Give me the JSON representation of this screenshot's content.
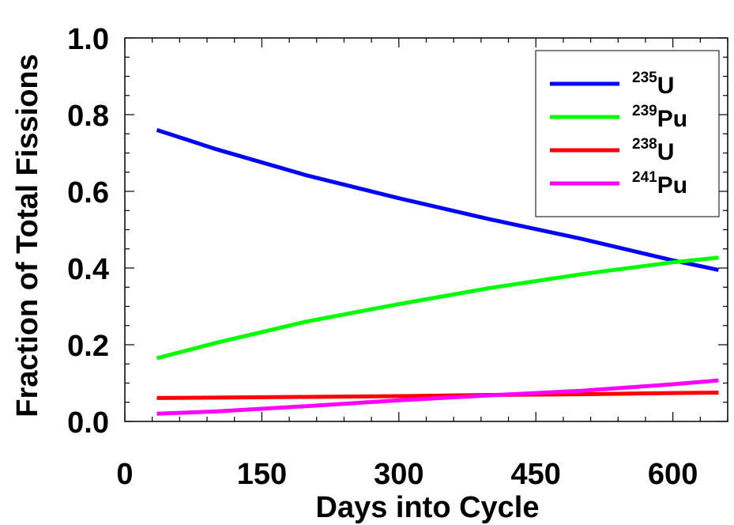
{
  "chart_data": {
    "type": "line",
    "xlabel": "Days into Cycle",
    "ylabel": "Fraction of Total Fissions",
    "xlim": [
      0,
      660
    ],
    "ylim": [
      0.0,
      1.0
    ],
    "x_ticks": [
      "0",
      "150",
      "300",
      "450",
      "600"
    ],
    "y_ticks": [
      "0.0",
      "0.2",
      "0.4",
      "0.6",
      "0.8",
      "1.0"
    ],
    "x_tick_values": [
      0,
      150,
      300,
      450,
      600
    ],
    "y_tick_values": [
      0.0,
      0.2,
      0.4,
      0.6,
      0.8,
      1.0
    ],
    "grid": false,
    "legend_position": "top-right",
    "x": [
      35,
      100,
      200,
      300,
      400,
      500,
      600,
      650
    ],
    "series": [
      {
        "name": "U",
        "sup": "235",
        "color": "#0000ff",
        "values": [
          0.76,
          0.71,
          0.641,
          0.582,
          0.527,
          0.476,
          0.42,
          0.395
        ]
      },
      {
        "name": "Pu",
        "sup": "239",
        "color": "#00ff00",
        "values": [
          0.165,
          0.205,
          0.261,
          0.306,
          0.348,
          0.384,
          0.415,
          0.427
        ]
      },
      {
        "name": "U",
        "sup": "238",
        "color": "#ff0000",
        "values": [
          0.061,
          0.062,
          0.064,
          0.066,
          0.069,
          0.071,
          0.074,
          0.075
        ]
      },
      {
        "name": "Pu",
        "sup": "241",
        "color": "#ff00ff",
        "values": [
          0.02,
          0.026,
          0.04,
          0.055,
          0.068,
          0.08,
          0.097,
          0.107
        ]
      }
    ]
  }
}
